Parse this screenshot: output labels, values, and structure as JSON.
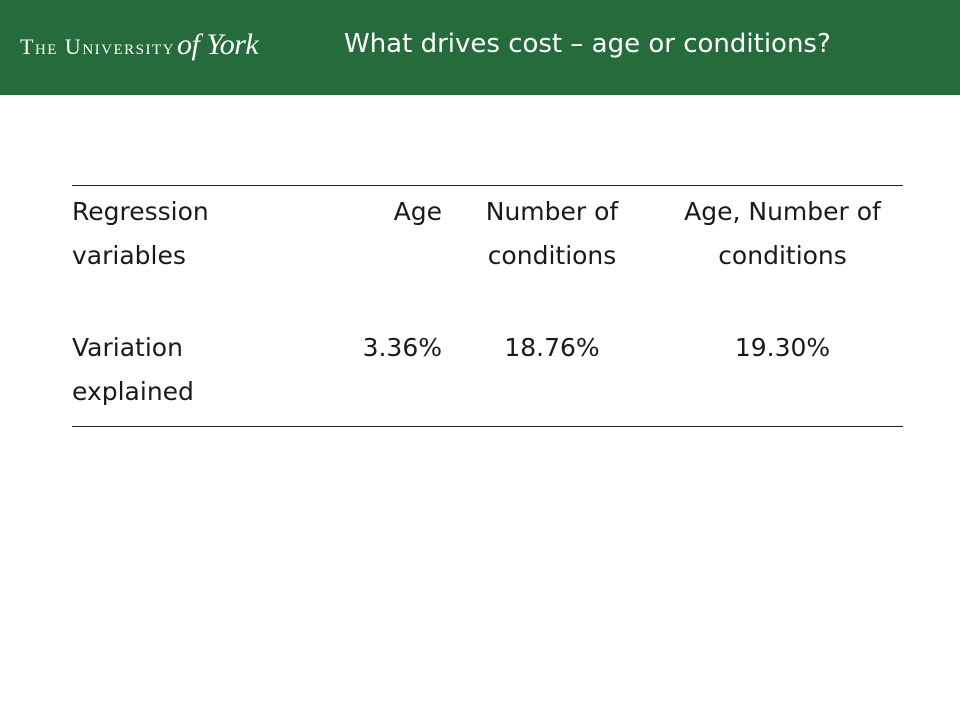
{
  "header": {
    "logo_main": "The University",
    "logo_script": "of York",
    "title": "What drives cost – age or conditions?"
  },
  "table": {
    "row_header": {
      "label": "Regression variables",
      "columns": [
        "Age",
        "Number of conditions",
        "Age, Number of conditions"
      ]
    },
    "row_values": {
      "label": "Variation explained",
      "values": [
        "3.36%",
        "18.76%",
        "19.30%"
      ]
    }
  },
  "colors": {
    "header_bg": "#266b3b",
    "header_text": "#ffffff",
    "rule": "#222222"
  }
}
